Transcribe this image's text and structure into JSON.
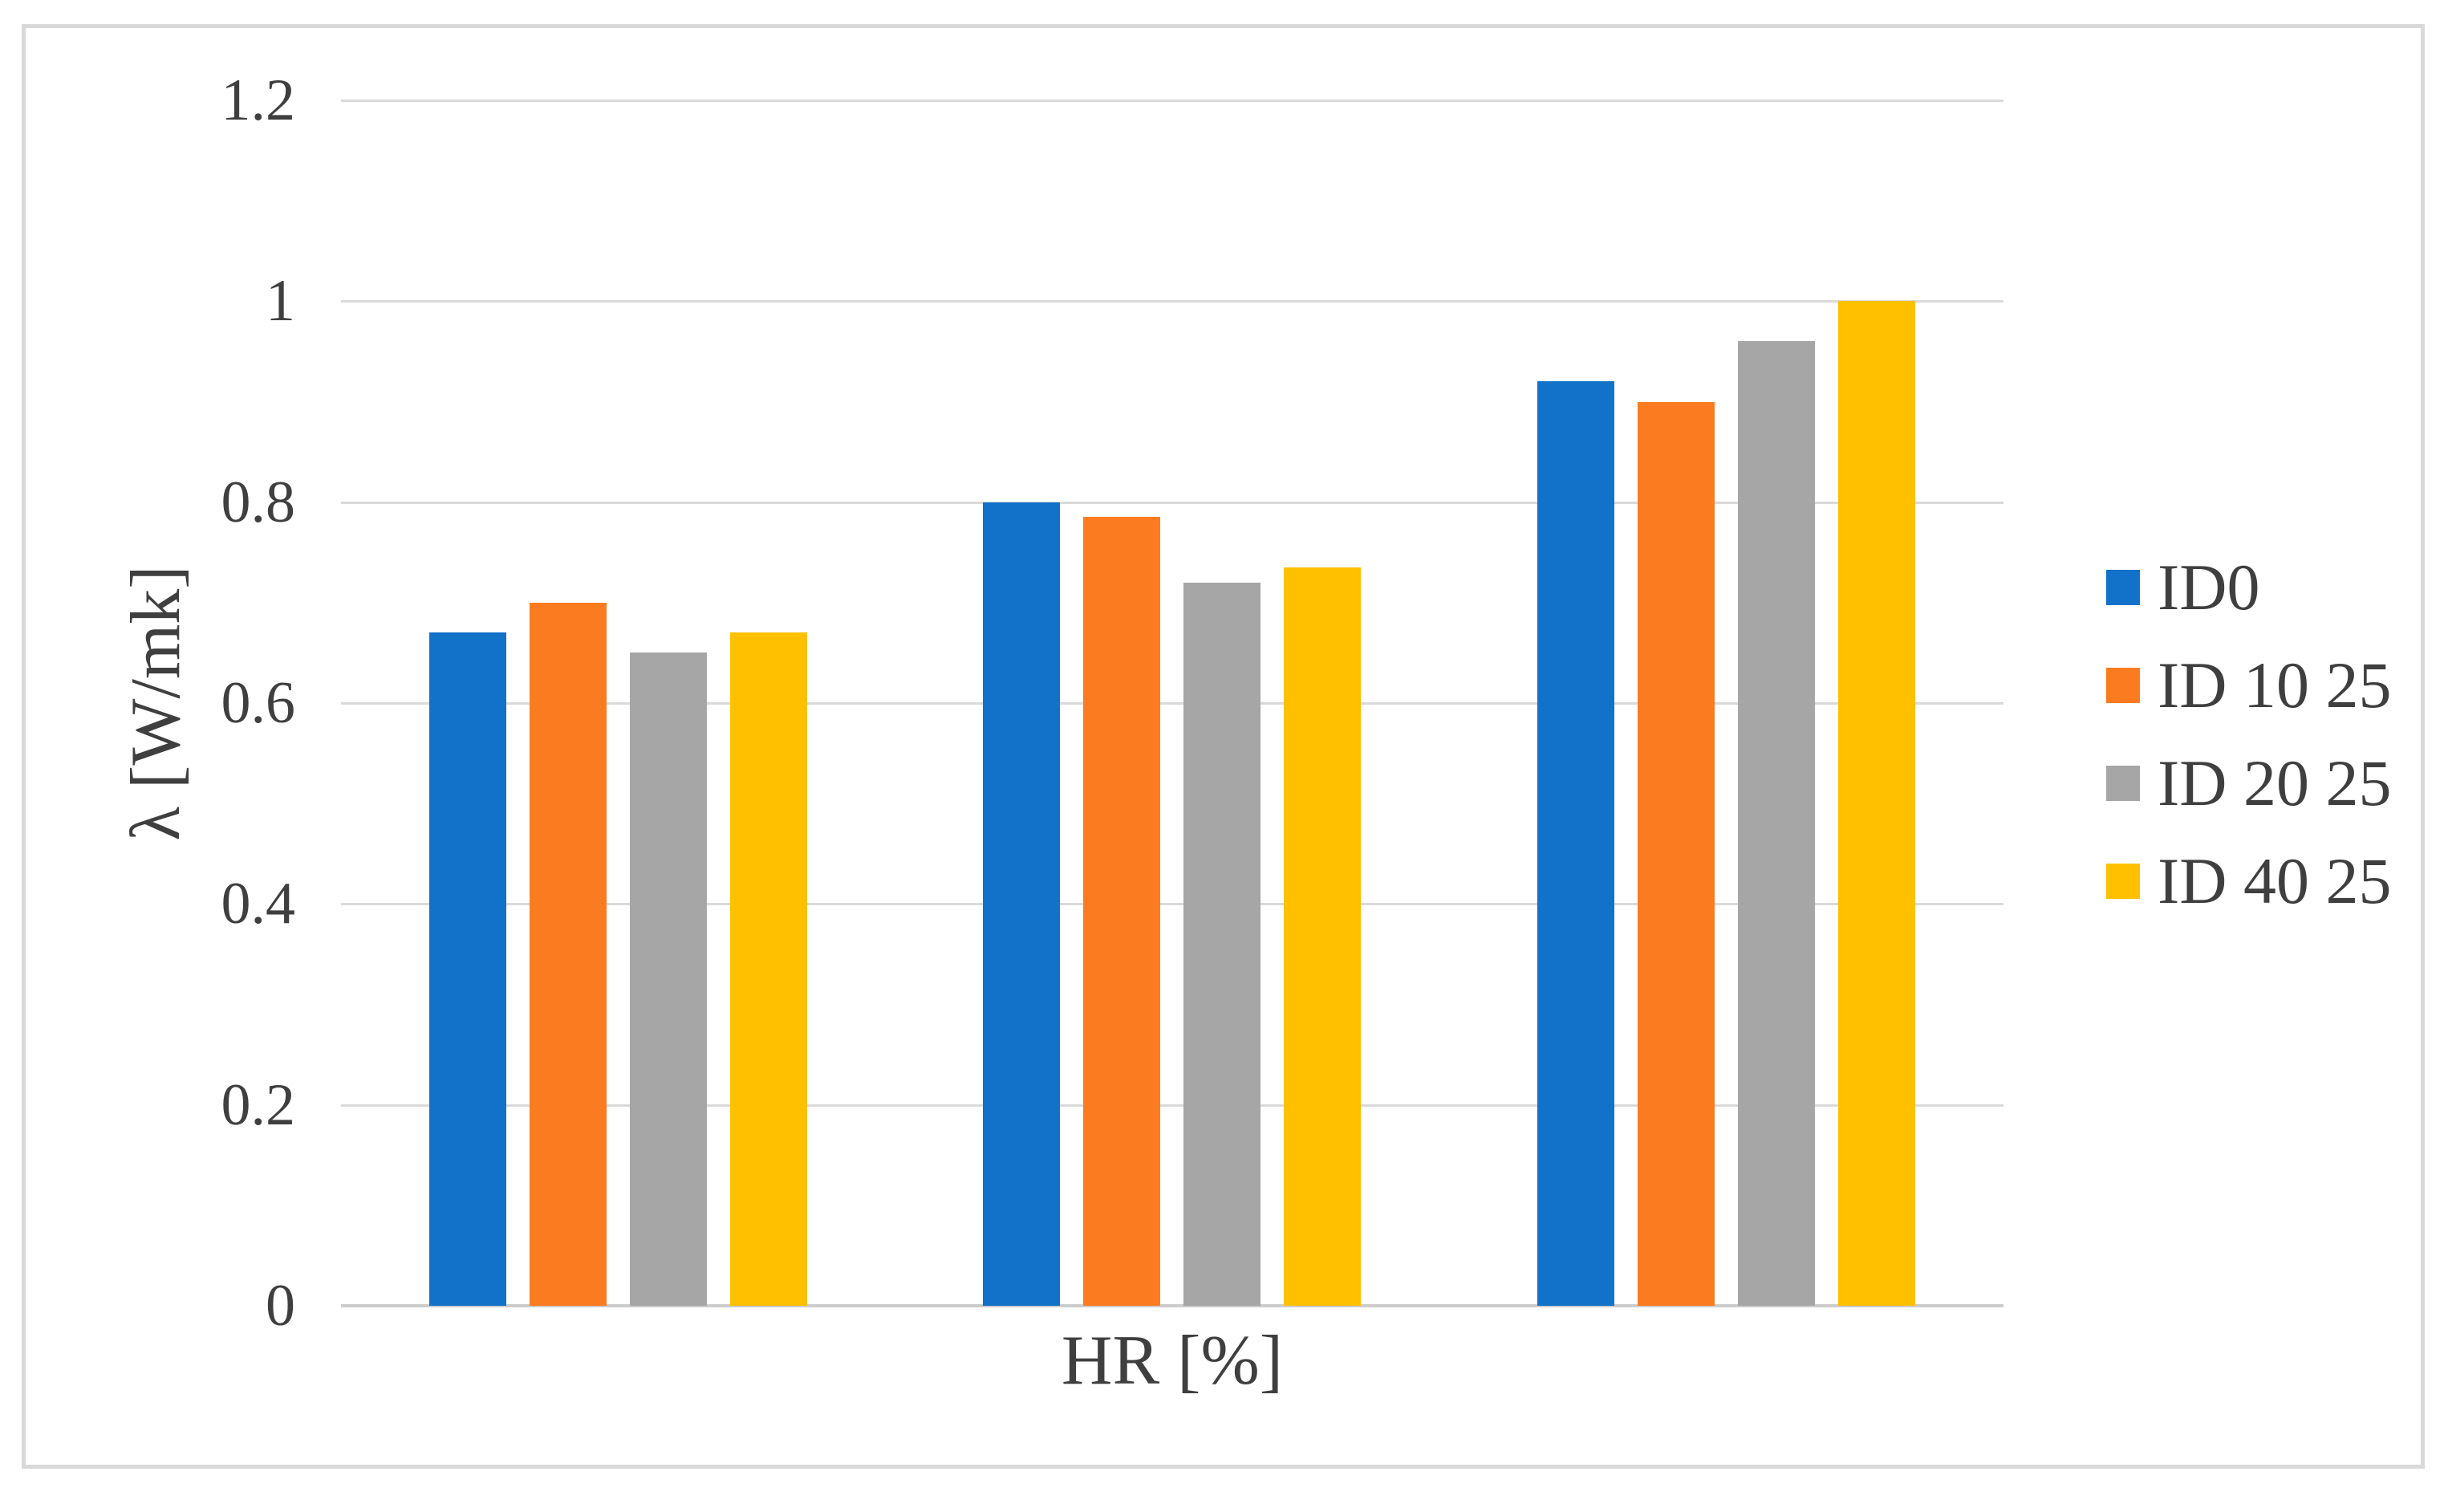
{
  "figure": {
    "background": "#ffffff",
    "border_color": "#d9d9d9",
    "text_color": "#3f3f3f",
    "gridline_color": "#dadada",
    "axis_line_color": "#cccccc"
  },
  "chart_data": {
    "type": "bar",
    "title": "",
    "xlabel": "HR [%]",
    "ylabel": "λ [W/mk]",
    "ylim": [
      0,
      1.2
    ],
    "grid": "horizontal",
    "legend_position": "right",
    "yticks": [
      {
        "value": 0,
        "label": "0"
      },
      {
        "value": 0.2,
        "label": "0.2"
      },
      {
        "value": 0.4,
        "label": "0.4"
      },
      {
        "value": 0.6,
        "label": "0.6"
      },
      {
        "value": 0.8,
        "label": "0.8"
      },
      {
        "value": 1,
        "label": "1"
      },
      {
        "value": 1.2,
        "label": "1.2"
      }
    ],
    "categories": [
      "",
      "",
      ""
    ],
    "series": [
      {
        "name": "ID0",
        "color": "#1271c9",
        "values": [
          0.67,
          0.8,
          0.92
        ]
      },
      {
        "name": "ID 10 25",
        "color": "#fb7c20",
        "values": [
          0.7,
          0.785,
          0.9
        ]
      },
      {
        "name": "ID 20 25",
        "color": "#a6a6a6",
        "values": [
          0.65,
          0.72,
          0.96
        ]
      },
      {
        "name": "ID 40 25",
        "color": "#ffc000",
        "values": [
          0.67,
          0.735,
          1.0
        ]
      }
    ]
  }
}
